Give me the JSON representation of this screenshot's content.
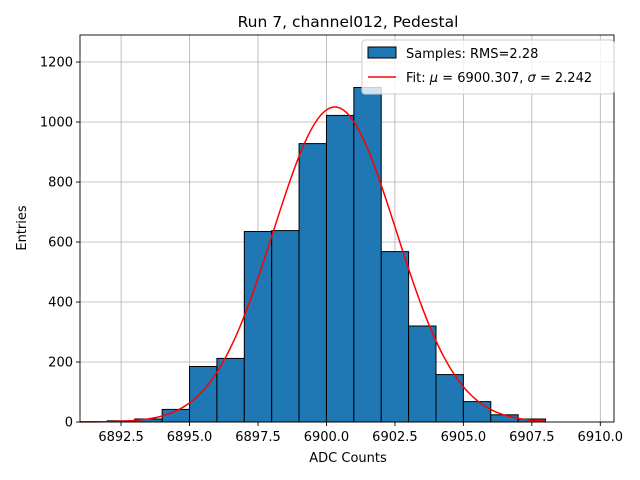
{
  "chart_data": {
    "type": "bar",
    "title": "Run 7, channel012, Pedestal",
    "xlabel": "ADC Counts",
    "ylabel": "Entries",
    "xlim": [
      6891.0,
      6910.5
    ],
    "ylim": [
      0,
      1290
    ],
    "grid": true,
    "x_ticks": [
      6892.5,
      6895.0,
      6897.5,
      6900.0,
      6902.5,
      6905.0,
      6907.5,
      6910.0
    ],
    "x_tick_labels": [
      "6892.5",
      "6895.0",
      "6897.5",
      "6900.0",
      "6902.5",
      "6905.0",
      "6907.5",
      "6910.0"
    ],
    "y_ticks": [
      0,
      200,
      400,
      600,
      800,
      1000,
      1200
    ],
    "y_tick_labels": [
      "0",
      "200",
      "400",
      "600",
      "800",
      "1000",
      "1200"
    ],
    "bar_color": "#1f77b4",
    "bin_edges": [
      6891,
      6892,
      6893,
      6894,
      6895,
      6896,
      6897,
      6898,
      6899,
      6900,
      6901,
      6902,
      6903,
      6904,
      6905,
      6906,
      6907,
      6908
    ],
    "counts": [
      1,
      4,
      10,
      42,
      185,
      212,
      635,
      638,
      928,
      1022,
      1115,
      568,
      320,
      158,
      68,
      24,
      10
    ],
    "fit": {
      "mu": 6900.307,
      "sigma": 2.242,
      "amplitude": 1050,
      "x_range": [
        6891.0,
        6908.0
      ],
      "color": "#ff0000"
    },
    "legend": {
      "position": "upper-right",
      "entries": [
        {
          "kind": "bar",
          "label_text": "Samples: RMS=2.28"
        },
        {
          "kind": "line",
          "prefix": "Fit: ",
          "mu_symbol": "μ",
          "mu_text": " = 6900.307, ",
          "sigma_symbol": "σ",
          "sigma_text": " = 2.242"
        }
      ]
    }
  }
}
